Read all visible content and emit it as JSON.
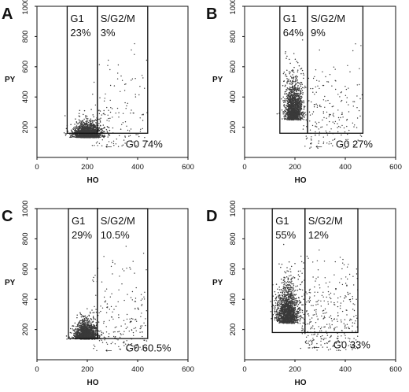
{
  "chart_data": [
    {
      "type": "scatter",
      "panel": "A",
      "xlabel": "HO",
      "ylabel": "PY",
      "xlim": [
        0,
        600
      ],
      "ylim": [
        0,
        1000
      ],
      "xticks": [
        "0",
        "200",
        "400",
        "600"
      ],
      "yticks": [
        "200",
        "400",
        "600",
        "800",
        "1000"
      ],
      "gates": {
        "g1": {
          "label": "G1",
          "value": "23%",
          "x_range": [
            120,
            240
          ],
          "y_range": [
            160,
            1000
          ]
        },
        "sg2m": {
          "label": "S/G2/M",
          "value": "3%",
          "x_range": [
            240,
            440
          ],
          "y_range": [
            160,
            1000
          ]
        },
        "g0": {
          "label": "G0 74%",
          "arrow": "←",
          "y_max": 160
        }
      },
      "cloud": {
        "cx": 200,
        "cy": 150,
        "sx": 28,
        "sy": 55,
        "n": 1500,
        "spread_n": 140
      }
    },
    {
      "type": "scatter",
      "panel": "B",
      "xlabel": "HO",
      "ylabel": "PY",
      "xlim": [
        0,
        600
      ],
      "ylim": [
        0,
        1000
      ],
      "xticks": [
        "0",
        "200",
        "400",
        "600"
      ],
      "yticks": [
        "200",
        "400",
        "600",
        "800",
        "1000"
      ],
      "gates": {
        "g1": {
          "label": "G1",
          "value": "64%",
          "x_range": [
            140,
            250
          ],
          "y_range": [
            160,
            1000
          ]
        },
        "sg2m": {
          "label": "S/G2/M",
          "value": "9%",
          "x_range": [
            250,
            470
          ],
          "y_range": [
            160,
            1000
          ]
        },
        "g0": {
          "label": "G0 27%",
          "arrow": "←",
          "y_max": 160
        }
      },
      "cloud": {
        "cx": 195,
        "cy": 300,
        "sx": 18,
        "sy": 150,
        "n": 1300,
        "spread_n": 200
      }
    },
    {
      "type": "scatter",
      "panel": "C",
      "xlabel": "HO",
      "ylabel": "PY",
      "xlim": [
        0,
        600
      ],
      "ylim": [
        0,
        1000
      ],
      "xticks": [
        "0",
        "200",
        "400",
        "600"
      ],
      "yticks": [
        "200",
        "400",
        "600",
        "800",
        "1000"
      ],
      "gates": {
        "g1": {
          "label": "G1",
          "value": "29%",
          "x_range": [
            125,
            240
          ],
          "y_range": [
            140,
            1000
          ]
        },
        "sg2m": {
          "label": "S/G2/M",
          "value": "10.5%",
          "x_range": [
            240,
            440
          ],
          "y_range": [
            140,
            1000
          ]
        },
        "g0": {
          "label": "G0 60.5%",
          "arrow": "←",
          "y_max": 140
        }
      },
      "cloud": {
        "cx": 195,
        "cy": 160,
        "sx": 22,
        "sy": 70,
        "n": 1300,
        "spread_n": 200
      }
    },
    {
      "type": "scatter",
      "panel": "D",
      "xlabel": "HO",
      "ylabel": "PY",
      "xlim": [
        0,
        600
      ],
      "ylim": [
        0,
        1000
      ],
      "xticks": [
        "0",
        "200",
        "400",
        "600"
      ],
      "yticks": [
        "200",
        "400",
        "600",
        "800",
        "1000"
      ],
      "gates": {
        "g1": {
          "label": "G1",
          "value": "55%",
          "x_range": [
            110,
            240
          ],
          "y_range": [
            180,
            1000
          ]
        },
        "sg2m": {
          "label": "S/G2/M",
          "value": "12%",
          "x_range": [
            240,
            450
          ],
          "y_range": [
            180,
            1000
          ]
        },
        "g0": {
          "label": "G0 33%",
          "arrow": "←",
          "y_max": 180
        }
      },
      "cloud": {
        "cx": 170,
        "cy": 290,
        "sx": 22,
        "sy": 140,
        "n": 1500,
        "spread_n": 350
      }
    }
  ],
  "panel_labels": [
    "A",
    "B",
    "C",
    "D"
  ],
  "colors": {
    "dots": "#3a3a3a",
    "lines": "#111111",
    "background": "#ffffff"
  }
}
